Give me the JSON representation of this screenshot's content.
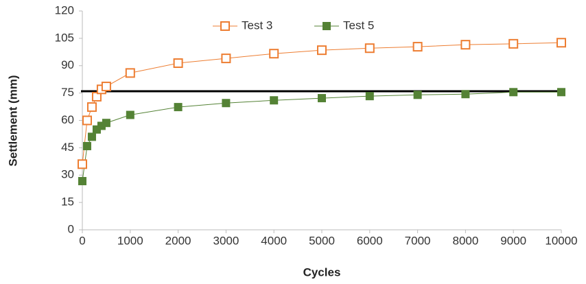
{
  "chart_data": {
    "type": "line",
    "x_label": "Cycles",
    "y_label": "Settlement (mm)",
    "x": [
      0,
      100,
      200,
      300,
      400,
      500,
      1000,
      2000,
      3000,
      4000,
      5000,
      6000,
      7000,
      8000,
      9000,
      10000
    ],
    "series": [
      {
        "name": "Test 3",
        "color": "#ed7d31",
        "marker": "open-square",
        "values": [
          36,
          60,
          67.3,
          73,
          77,
          78.6,
          86,
          91.4,
          94,
          96.6,
          98.5,
          99.6,
          100.4,
          101.5,
          102,
          102.6
        ]
      },
      {
        "name": "Test 5",
        "color": "#548235",
        "marker": "filled-square",
        "values": [
          26.7,
          45.9,
          51,
          55,
          57,
          58.6,
          63,
          67.3,
          69.5,
          71,
          72.2,
          73.3,
          74,
          74.4,
          75.5,
          75.5
        ]
      }
    ],
    "reference_line": 76,
    "reference_color": "#000000",
    "xlim": [
      0,
      10000
    ],
    "xticks": [
      0,
      1000,
      2000,
      3000,
      4000,
      5000,
      6000,
      7000,
      8000,
      9000,
      10000
    ],
    "ylim": [
      0,
      120
    ],
    "yticks": [
      0,
      15,
      30,
      45,
      60,
      75,
      90,
      105,
      120
    ],
    "grid": false,
    "legend": "top"
  }
}
